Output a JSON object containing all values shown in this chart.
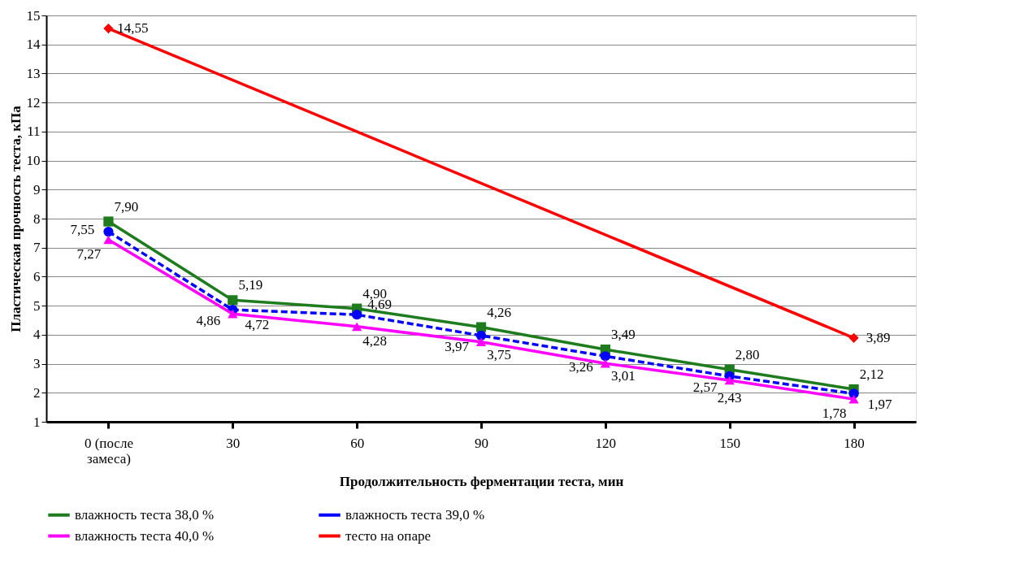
{
  "chart_data": {
    "type": "line",
    "xlabel": "Продолжительность ферментации теста, мин",
    "ylabel": "Пластическая прочность теста, кПа",
    "categories": [
      "0 (после\nзамеса)",
      "30",
      "60",
      "90",
      "120",
      "150",
      "180"
    ],
    "series": [
      {
        "name": "влажность теста 38,0 %",
        "color": "#1e7b1e",
        "marker": "square",
        "line_style": "solid",
        "values": [
          7.9,
          5.19,
          4.9,
          4.26,
          3.49,
          2.8,
          2.12
        ],
        "value_labels": [
          "7,90",
          "5,19",
          "4,90",
          "4,26",
          "3,49",
          "2,80",
          "2,12"
        ]
      },
      {
        "name": "влажность теста 39,0 %",
        "color": "#0000ff",
        "marker": "circle",
        "line_style": "dashed",
        "values": [
          7.55,
          4.86,
          4.69,
          3.97,
          3.26,
          2.57,
          1.97
        ],
        "value_labels": [
          "7,55",
          "4,86",
          "4,69",
          "3,97",
          "3,26",
          "2,57",
          "1,97"
        ]
      },
      {
        "name": "влажность теста 40,0 %",
        "color": "#ff00ff",
        "marker": "triangle",
        "line_style": "solid",
        "values": [
          7.27,
          4.72,
          4.28,
          3.75,
          3.01,
          2.43,
          1.78
        ],
        "value_labels": [
          "7,27",
          "4,72",
          "4,28",
          "3,75",
          "3,01",
          "2,43",
          "1,78"
        ]
      },
      {
        "name": "тесто на опаре",
        "color": "#ff0000",
        "marker": "diamond",
        "line_style": "solid",
        "values": [
          14.55,
          null,
          null,
          null,
          null,
          null,
          3.89
        ],
        "value_labels": [
          "14,55",
          null,
          null,
          null,
          null,
          null,
          "3,89"
        ]
      }
    ],
    "ylim": [
      1,
      15
    ],
    "yticks": [
      1,
      2,
      3,
      4,
      5,
      6,
      7,
      8,
      9,
      10,
      11,
      12,
      13,
      14,
      15
    ],
    "grid": "y",
    "legend": "bottom"
  }
}
